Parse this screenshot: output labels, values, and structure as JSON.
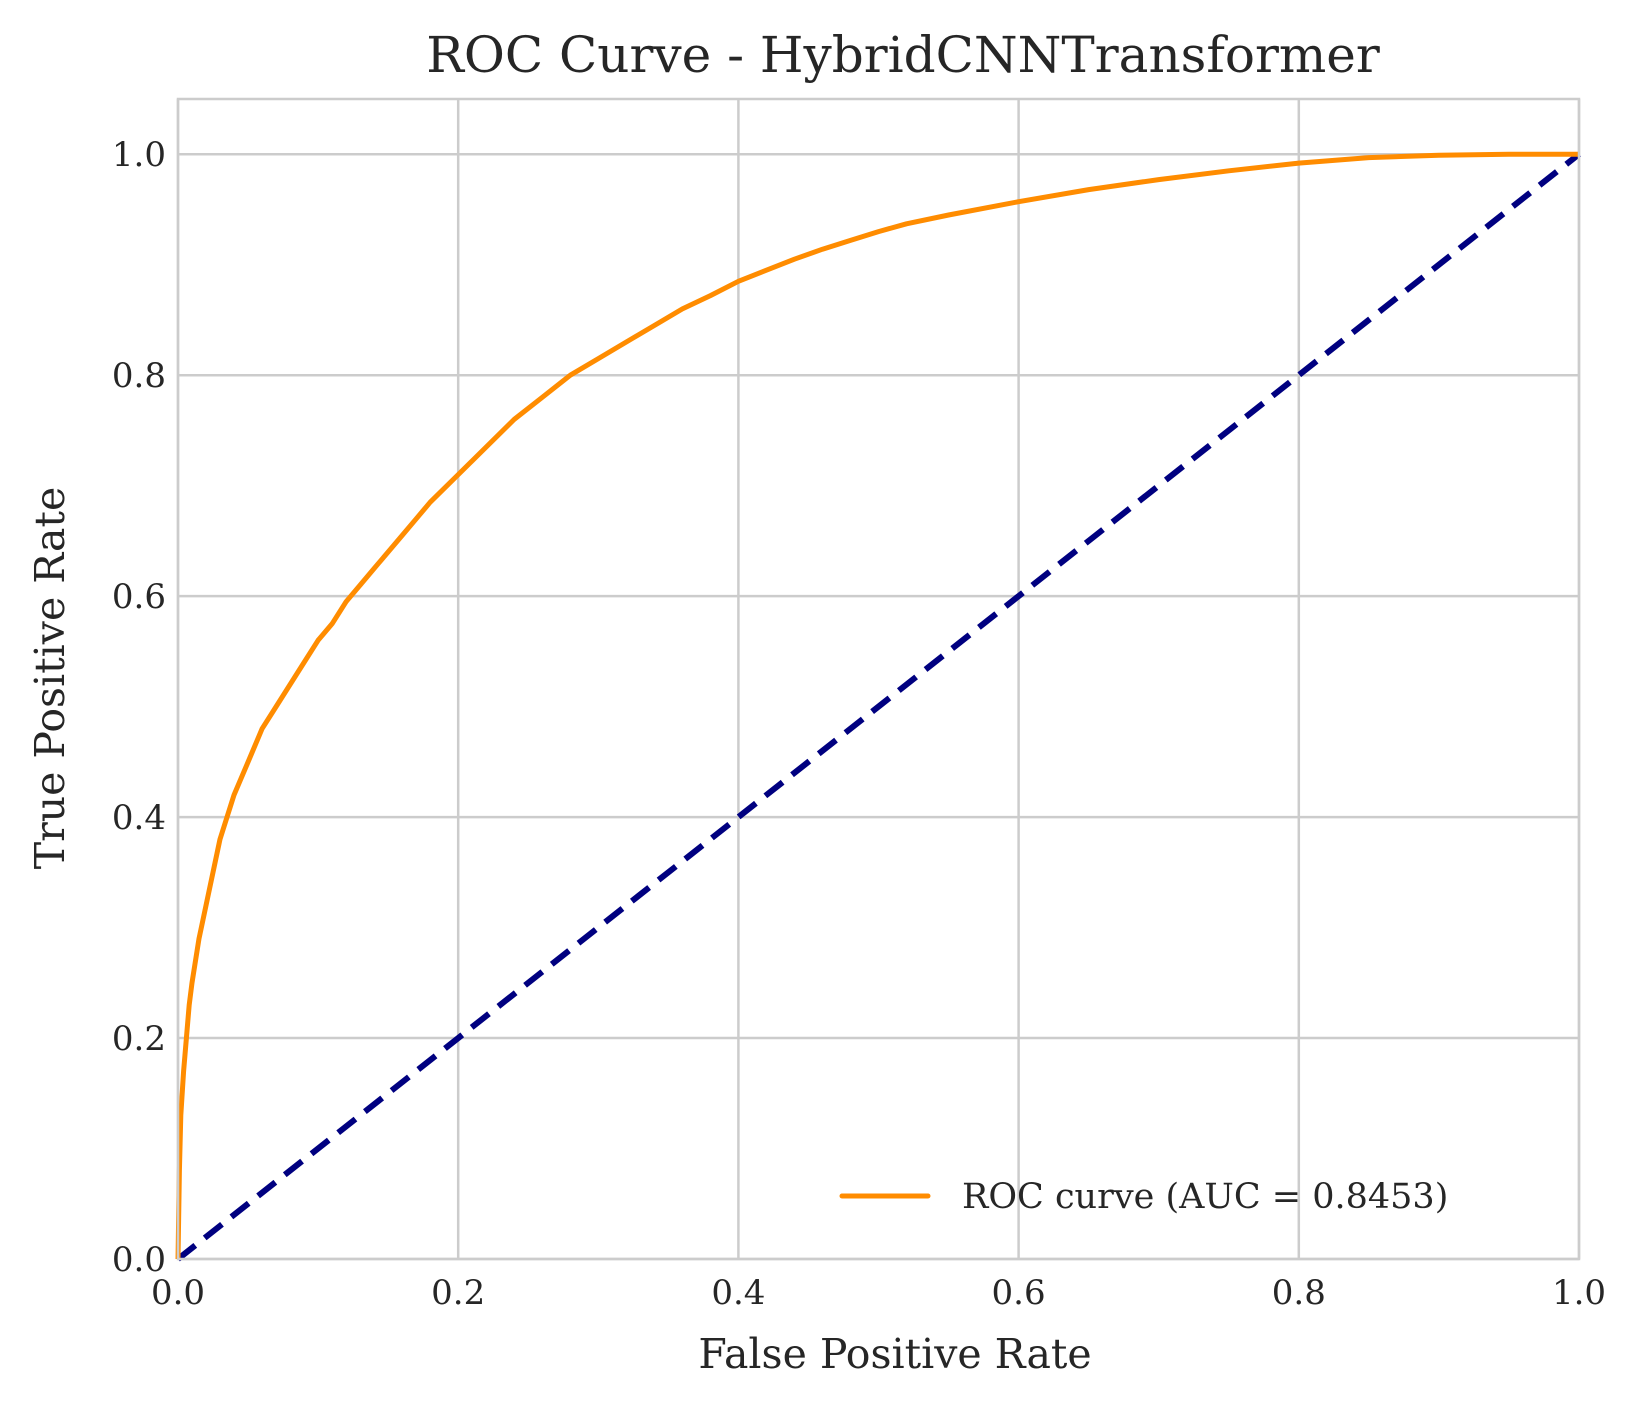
{
  "chart_data": {
    "type": "line",
    "title": "ROC Curve - HybridCNNTransformer",
    "xlabel": "False Positive Rate",
    "ylabel": "True Positive Rate",
    "xlim": [
      0.0,
      1.0
    ],
    "ylim": [
      0.0,
      1.05
    ],
    "xticks": [
      0.0,
      0.2,
      0.4,
      0.6,
      0.8,
      1.0
    ],
    "xtick_labels": [
      "0.0",
      "0.2",
      "0.4",
      "0.6",
      "0.8",
      "1.0"
    ],
    "yticks": [
      0.0,
      0.2,
      0.4,
      0.6,
      0.8,
      1.0
    ],
    "ytick_labels": [
      "0.0",
      "0.2",
      "0.4",
      "0.6",
      "0.8",
      "1.0"
    ],
    "grid": true,
    "legend": {
      "position": "lower-right"
    },
    "series": [
      {
        "name": "ROC curve (AUC = 0.8453)",
        "color": "#ff8c00",
        "style": "solid",
        "x": [
          0.0,
          0.001,
          0.002,
          0.004,
          0.006,
          0.008,
          0.01,
          0.015,
          0.02,
          0.025,
          0.03,
          0.035,
          0.04,
          0.05,
          0.06,
          0.07,
          0.08,
          0.09,
          0.1,
          0.11,
          0.12,
          0.13,
          0.14,
          0.15,
          0.16,
          0.17,
          0.18,
          0.2,
          0.22,
          0.24,
          0.26,
          0.28,
          0.3,
          0.32,
          0.34,
          0.36,
          0.38,
          0.4,
          0.42,
          0.44,
          0.46,
          0.48,
          0.5,
          0.52,
          0.55,
          0.6,
          0.65,
          0.7,
          0.75,
          0.8,
          0.85,
          0.9,
          0.95,
          1.0
        ],
        "y": [
          0.0,
          0.08,
          0.13,
          0.17,
          0.2,
          0.23,
          0.25,
          0.29,
          0.32,
          0.35,
          0.38,
          0.4,
          0.42,
          0.45,
          0.48,
          0.5,
          0.52,
          0.54,
          0.56,
          0.575,
          0.595,
          0.61,
          0.625,
          0.64,
          0.655,
          0.67,
          0.685,
          0.71,
          0.735,
          0.76,
          0.78,
          0.8,
          0.815,
          0.83,
          0.845,
          0.86,
          0.872,
          0.885,
          0.895,
          0.905,
          0.914,
          0.922,
          0.93,
          0.937,
          0.945,
          0.957,
          0.968,
          0.977,
          0.985,
          0.992,
          0.997,
          0.999,
          1.0,
          1.0
        ]
      },
      {
        "name": "",
        "color": "#000080",
        "style": "dashed",
        "x": [
          0.0,
          1.0
        ],
        "y": [
          0.0,
          1.0
        ]
      }
    ]
  }
}
